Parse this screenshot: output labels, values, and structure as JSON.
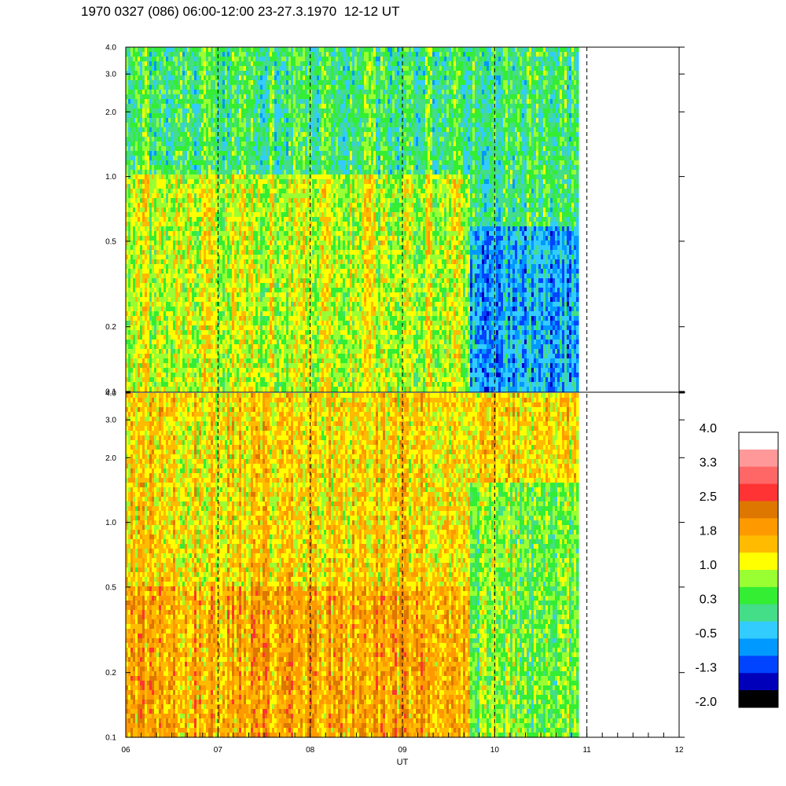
{
  "header": {
    "title": "1970 0327 (086) 06:00-12:00 23-27.3.1970  12-12 UT"
  },
  "chart_data": {
    "type": "heatmap",
    "title": "1970 0327 (086) 06:00-12:00 23-27.3.1970  12-12 UT",
    "xlabel": "UT",
    "x_ticks": [
      "06",
      "07",
      "08",
      "09",
      "10",
      "11",
      "12"
    ],
    "x_range": [
      6,
      12
    ],
    "data_end_ut": 10.9,
    "y_scale": "log",
    "y_range": [
      0.1,
      4.0
    ],
    "y_ticks": [
      "0.1",
      "0.2",
      "0.5",
      "1.0",
      "2.0",
      "3.0",
      "4.0"
    ],
    "dashed_lines_ut": [
      7,
      8,
      9,
      10,
      11
    ],
    "colorbar": {
      "labels": [
        "4.0",
        "3.3",
        "2.5",
        "1.8",
        "1.0",
        "0.3",
        "-0.5",
        "-1.3",
        "-2.0"
      ],
      "colors": [
        "#ffffff",
        "#ff9999",
        "#ff6666",
        "#ff3333",
        "#dd7700",
        "#ff9900",
        "#ffbb00",
        "#ffff00",
        "#99ff33",
        "#33ee33",
        "#44dd88",
        "#33ccff",
        "#0099ff",
        "#0044ff",
        "#0000bb",
        "#000000"
      ]
    },
    "panels": [
      {
        "name": "upper",
        "description_regions": [
          {
            "ut": [
              6.0,
              9.72
            ],
            "y": [
              0.1,
              4.0
            ],
            "level": 1.0
          },
          {
            "ut": [
              6.0,
              9.72
            ],
            "y": [
              1.0,
              4.0
            ],
            "level": 0.3
          },
          {
            "ut": [
              9.72,
              10.9
            ],
            "y": [
              0.1,
              0.6
            ],
            "level": -0.5
          },
          {
            "ut": [
              9.72,
              10.9
            ],
            "y": [
              0.6,
              4.0
            ],
            "level": 0.3
          }
        ]
      },
      {
        "name": "lower",
        "description_regions": [
          {
            "ut": [
              6.0,
              9.72
            ],
            "y": [
              0.1,
              0.5
            ],
            "level": 1.8
          },
          {
            "ut": [
              6.0,
              9.72
            ],
            "y": [
              0.5,
              4.0
            ],
            "level": 1.4
          },
          {
            "ut": [
              9.72,
              10.9
            ],
            "y": [
              0.1,
              4.0
            ],
            "level": 0.6
          },
          {
            "ut": [
              9.72,
              10.9
            ],
            "y": [
              1.5,
              4.0
            ],
            "level": 1.4
          }
        ]
      }
    ]
  }
}
